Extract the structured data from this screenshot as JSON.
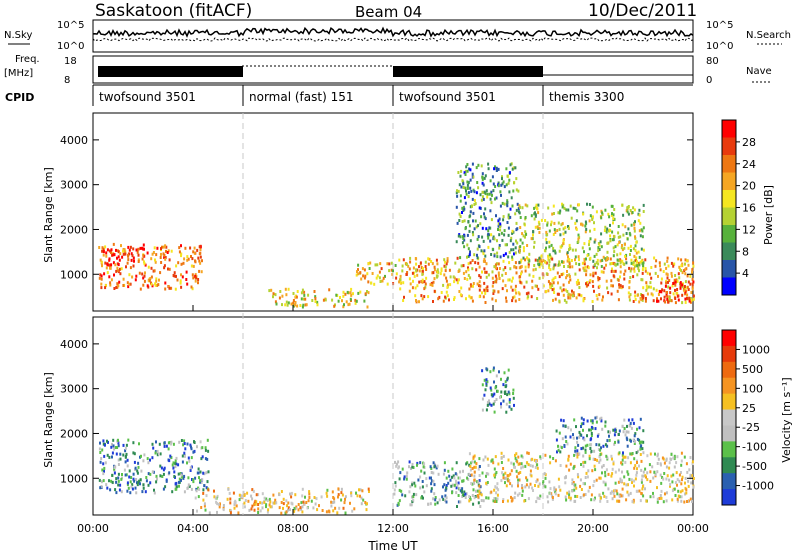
{
  "header": {
    "station": "Saskatoon (fitACF)",
    "beam": "Beam 04",
    "date": "10/Dec/2011"
  },
  "summary": {
    "nsky_label": "N.Sky",
    "nsky_ticks": [
      "10^5",
      "10^0"
    ],
    "nsearch_label": "N.Search",
    "nsearch_ticks": [
      "10^5",
      "10^0"
    ],
    "freq_label_1": "Freq.",
    "freq_label_2": "[MHz]",
    "freq_ticks": [
      "18",
      "8"
    ],
    "nave_label": "Nave",
    "nave_ticks": [
      "80",
      "0"
    ],
    "cpid_label": "CPID",
    "cpid_segments": [
      {
        "label": "twofsound 3501",
        "start_hour": 0,
        "end_hour": 6
      },
      {
        "label": "normal (fast) 151",
        "start_hour": 6,
        "end_hour": 12
      },
      {
        "label": "twofsound 3501",
        "start_hour": 12,
        "end_hour": 18
      },
      {
        "label": "themis 3300",
        "start_hour": 18,
        "end_hour": 24
      }
    ]
  },
  "power_panel": {
    "ylabel": "Slant Range [km]",
    "yticks": [
      "4000",
      "3000",
      "2000",
      "1000"
    ],
    "colorbar_label": "Power [dB]",
    "colorbar_ticks": [
      "28",
      "24",
      "20",
      "16",
      "12",
      "8",
      "4"
    ],
    "colors": [
      "#0000ff",
      "#2855a8",
      "#3a8a5a",
      "#57b13b",
      "#b5d233",
      "#f5e621",
      "#f5a623",
      "#ee7712",
      "#e83a0d",
      "#ff0000"
    ]
  },
  "velocity_panel": {
    "ylabel": "Slant Range [km]",
    "yticks": [
      "4000",
      "3000",
      "2000",
      "1000"
    ],
    "colorbar_label": "Velocity [m s⁻¹]",
    "colorbar_ticks": [
      "1000",
      "500",
      "100",
      "25",
      "-25",
      "-100",
      "-500",
      "-1000"
    ],
    "colors": [
      "#1e3cd8",
      "#2a60b0",
      "#2f8a52",
      "#5bc04a",
      "#c0c0c0",
      "#c8c8c8",
      "#f5c022",
      "#f59422",
      "#ee6a10",
      "#e63a0a",
      "#ff0000"
    ]
  },
  "xaxis": {
    "ticks": [
      "00:00",
      "04:00",
      "08:00",
      "12:00",
      "16:00",
      "20:00",
      "00:00"
    ],
    "label": "Time UT"
  },
  "chart_data": {
    "type": "heatmap",
    "title": "Saskatoon (fitACF)",
    "subtitle": "Beam 04",
    "xlabel": "Time UT",
    "ylabel": "Slant Range [km]",
    "xlim": [
      0,
      24
    ],
    "ylim": [
      180,
      4600
    ],
    "grid": false,
    "regions": [
      {
        "panel": "power",
        "t0": 0.2,
        "t1": 4.4,
        "r0": 700,
        "r1": 1700,
        "level": 0.75
      },
      {
        "panel": "power",
        "t0": 0.5,
        "t1": 2.0,
        "r0": 1300,
        "r1": 1700,
        "level": 0.9
      },
      {
        "panel": "power",
        "t0": 7.0,
        "t1": 11.0,
        "r0": 300,
        "r1": 700,
        "level": 0.55
      },
      {
        "panel": "power",
        "t0": 10.5,
        "t1": 12.2,
        "r0": 800,
        "r1": 1300,
        "level": 0.6
      },
      {
        "panel": "power",
        "t0": 12.2,
        "t1": 24.0,
        "r0": 400,
        "r1": 1400,
        "level": 0.65
      },
      {
        "panel": "power",
        "t0": 14.5,
        "t1": 17.0,
        "r0": 1400,
        "r1": 3500,
        "level": 0.3
      },
      {
        "panel": "power",
        "t0": 17.0,
        "t1": 22.0,
        "r0": 1200,
        "r1": 2600,
        "level": 0.45
      },
      {
        "panel": "power",
        "t0": 22.5,
        "t1": 24.0,
        "r0": 400,
        "r1": 900,
        "level": 0.9
      },
      {
        "panel": "velocity",
        "t0": 0.2,
        "t1": 4.6,
        "r0": 700,
        "r1": 1900,
        "level": 0.25
      },
      {
        "panel": "velocity",
        "t0": 4.0,
        "t1": 11.0,
        "r0": 250,
        "r1": 800,
        "level": 0.55
      },
      {
        "panel": "velocity",
        "t0": 12.0,
        "t1": 15.5,
        "r0": 400,
        "r1": 1400,
        "level": 0.3
      },
      {
        "panel": "velocity",
        "t0": 15.0,
        "t1": 24.0,
        "r0": 500,
        "r1": 1600,
        "level": 0.5
      },
      {
        "panel": "velocity",
        "t0": 15.5,
        "t1": 16.8,
        "r0": 2500,
        "r1": 3500,
        "level": 0.2
      },
      {
        "panel": "velocity",
        "t0": 18.5,
        "t1": 22.0,
        "r0": 1600,
        "r1": 2400,
        "level": 0.25
      }
    ]
  }
}
